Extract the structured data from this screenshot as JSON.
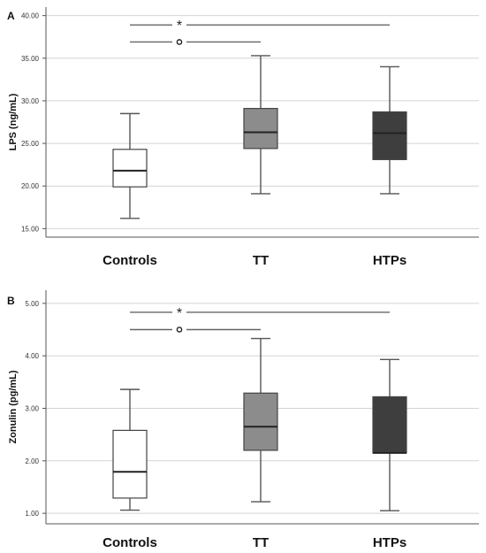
{
  "chart_data": [
    {
      "type": "box",
      "panel_label": "A",
      "ylabel": "LPS (ng/mL)",
      "ylim": [
        14.0,
        41.0
      ],
      "yticks": [
        15.0,
        20.0,
        25.0,
        30.0,
        35.0,
        40.0
      ],
      "ytick_labels": [
        "15.00",
        "20.00",
        "25.00",
        "30.00",
        "35.00",
        "40.00"
      ],
      "grid": true,
      "categories": [
        "Controls",
        "TT",
        "HTPs"
      ],
      "fill_colors": [
        "#ffffff",
        "#8c8c8c",
        "#3e3e3e"
      ],
      "boxes": [
        {
          "whisker_low": 16.2,
          "q1": 19.9,
          "median": 21.8,
          "q3": 24.3,
          "whisker_high": 28.5
        },
        {
          "whisker_low": 19.1,
          "q1": 24.4,
          "median": 26.3,
          "q3": 29.1,
          "whisker_high": 35.3
        },
        {
          "whisker_low": 19.1,
          "q1": 23.1,
          "median": 26.2,
          "q3": 28.7,
          "whisker_high": 34.0
        }
      ],
      "annotations": [
        {
          "symbol": "*",
          "from": "Controls",
          "to": "HTPs",
          "y": 38.9
        },
        {
          "symbol": "o",
          "from": "Controls",
          "to": "TT",
          "y": 36.9
        }
      ]
    },
    {
      "type": "box",
      "panel_label": "B",
      "ylabel": "Zonulin (pg/mL)",
      "ylim": [
        0.8,
        5.25
      ],
      "yticks": [
        1.0,
        2.0,
        3.0,
        4.0,
        5.0
      ],
      "ytick_labels": [
        "1.00",
        "2.00",
        "3.00",
        "4.00",
        "5.00"
      ],
      "grid": true,
      "categories": [
        "Controls",
        "TT",
        "HTPs"
      ],
      "fill_colors": [
        "#ffffff",
        "#8c8c8c",
        "#3e3e3e"
      ],
      "boxes": [
        {
          "whisker_low": 1.06,
          "q1": 1.29,
          "median": 1.79,
          "q3": 2.58,
          "whisker_high": 3.36
        },
        {
          "whisker_low": 1.22,
          "q1": 2.2,
          "median": 2.65,
          "q3": 3.29,
          "whisker_high": 4.33
        },
        {
          "whisker_low": 1.05,
          "q1": 2.15,
          "median": 2.15,
          "q3": 3.22,
          "whisker_high": 3.93
        }
      ],
      "annotations": [
        {
          "symbol": "*",
          "from": "Controls",
          "to": "HTPs",
          "y": 4.83
        },
        {
          "symbol": "o",
          "from": "Controls",
          "to": "TT",
          "y": 4.5
        }
      ]
    }
  ]
}
